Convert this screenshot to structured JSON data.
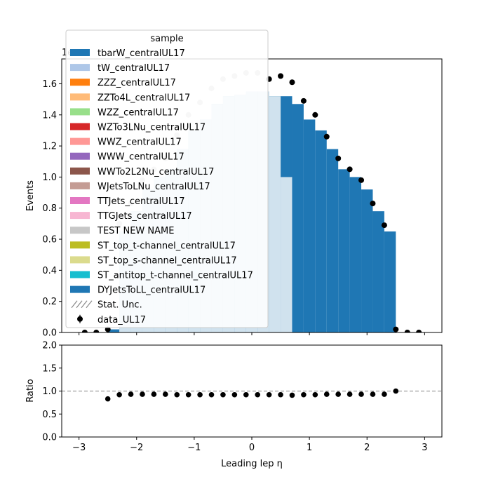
{
  "chart_data": [
    {
      "type": "bar",
      "panel": "main",
      "xlabel": "Leading lep η",
      "ylabel": "Events",
      "offset_text": "1e",
      "xlim": [
        -3.3,
        3.3
      ],
      "ylim": [
        0,
        1.76
      ],
      "yticks": [
        0.0,
        0.2,
        0.4,
        0.6,
        0.8,
        1.0,
        1.2,
        1.4,
        1.6
      ],
      "xticks": [
        -3,
        -2,
        -1,
        0,
        1,
        2,
        3
      ],
      "bin_edges": [
        -2.5,
        -2.3,
        -2.1,
        -1.9,
        -1.7,
        -1.5,
        -1.3,
        -1.1,
        -0.9,
        -0.7,
        -0.5,
        -0.3,
        -0.1,
        0.1,
        0.3,
        0.5,
        0.7,
        0.9,
        1.1,
        1.3,
        1.5,
        1.7,
        1.9,
        2.1,
        2.3,
        2.5
      ],
      "mc_total": [
        0.02,
        0.65,
        0.78,
        0.92,
        1.0,
        1.05,
        1.18,
        1.3,
        1.37,
        1.47,
        1.52,
        1.53,
        1.55,
        1.55,
        1.52,
        1.52,
        1.47,
        1.37,
        1.3,
        1.18,
        1.05,
        1.0,
        0.92,
        0.78,
        0.65,
        0.02
      ],
      "test_new_name": [
        0.0,
        0.69,
        0.84,
        0.99,
        1.06,
        1.12,
        1.3,
        1.43,
        1.5,
        1.6,
        1.65,
        1.66,
        1.67,
        1.68,
        1.68,
        1.0,
        0.0,
        0.0,
        0.0,
        0.0,
        0.0,
        0.0,
        0.0,
        0.0,
        0.0,
        0.0
      ],
      "data_x": [
        -2.9,
        -2.7,
        -2.5,
        -2.3,
        -2.1,
        -1.9,
        -1.7,
        -1.5,
        -1.3,
        -1.1,
        -0.9,
        -0.7,
        -0.5,
        -0.3,
        -0.1,
        0.1,
        0.3,
        0.5,
        0.7,
        0.9,
        1.1,
        1.3,
        1.5,
        1.7,
        1.9,
        2.1,
        2.3,
        2.5,
        2.7,
        2.9
      ],
      "data_y": [
        0.0,
        0.0,
        0.02,
        0.7,
        0.83,
        0.98,
        1.05,
        1.12,
        1.27,
        1.4,
        1.48,
        1.57,
        1.63,
        1.65,
        1.67,
        1.67,
        1.63,
        1.65,
        1.61,
        1.49,
        1.4,
        1.26,
        1.12,
        1.05,
        0.98,
        0.83,
        0.69,
        0.02,
        0.0,
        0.0
      ],
      "legend": {
        "title": "sample",
        "placement": "upper-left",
        "entries": [
          {
            "label": "tbarW_centralUL17",
            "color": "#1f77b4",
            "kind": "patch"
          },
          {
            "label": "tW_centralUL17",
            "color": "#aec7e8",
            "kind": "patch"
          },
          {
            "label": "ZZZ_centralUL17",
            "color": "#ff7f0e",
            "kind": "patch"
          },
          {
            "label": "ZZTo4L_centralUL17",
            "color": "#ffbb78",
            "kind": "patch"
          },
          {
            "label": "WZZ_centralUL17",
            "color": "#98df8a",
            "kind": "patch"
          },
          {
            "label": "WZTo3LNu_centralUL17",
            "color": "#d62728",
            "kind": "patch"
          },
          {
            "label": "WWZ_centralUL17",
            "color": "#ff9896",
            "kind": "patch"
          },
          {
            "label": "WWW_centralUL17",
            "color": "#9467bd",
            "kind": "patch"
          },
          {
            "label": "WWTo2L2Nu_centralUL17",
            "color": "#8c564b",
            "kind": "patch"
          },
          {
            "label": "WJetsToLNu_centralUL17",
            "color": "#c49c94",
            "kind": "patch"
          },
          {
            "label": "TTJets_centralUL17",
            "color": "#e377c2",
            "kind": "patch"
          },
          {
            "label": "TTGJets_centralUL17",
            "color": "#f7b6d2",
            "kind": "patch"
          },
          {
            "label": "TEST NEW NAME",
            "color": "#c7c7c7",
            "kind": "patch"
          },
          {
            "label": "ST_top_t-channel_centralUL17",
            "color": "#bcbd22",
            "kind": "patch"
          },
          {
            "label": "ST_top_s-channel_centralUL17",
            "color": "#dbdb8d",
            "kind": "patch"
          },
          {
            "label": "ST_antitop_t-channel_centralUL17",
            "color": "#17becf",
            "kind": "patch"
          },
          {
            "label": "DYJetsToLL_centralUL17",
            "color": "#1f77b4",
            "kind": "patch"
          },
          {
            "label": "Stat. Unc.",
            "color": "#888888",
            "kind": "hatch"
          },
          {
            "label": "data_UL17",
            "color": "#000000",
            "kind": "errorbar"
          }
        ]
      }
    },
    {
      "type": "scatter",
      "panel": "ratio",
      "xlabel": "Leading lep η",
      "ylabel": "Ratio",
      "xlim": [
        -3.3,
        3.3
      ],
      "ylim": [
        0.0,
        2.0
      ],
      "yticks": [
        0.0,
        0.5,
        1.0,
        1.5,
        2.0
      ],
      "xticks": [
        -3,
        -2,
        -1,
        0,
        1,
        2,
        3
      ],
      "reference_line": 1.0,
      "x": [
        -2.5,
        -2.3,
        -2.1,
        -1.9,
        -1.7,
        -1.5,
        -1.3,
        -1.1,
        -0.9,
        -0.7,
        -0.5,
        -0.3,
        -0.1,
        0.1,
        0.3,
        0.5,
        0.7,
        0.9,
        1.1,
        1.3,
        1.5,
        1.7,
        1.9,
        2.1,
        2.3,
        2.5
      ],
      "y": [
        0.83,
        0.92,
        0.93,
        0.93,
        0.93,
        0.93,
        0.92,
        0.92,
        0.92,
        0.92,
        0.92,
        0.92,
        0.92,
        0.92,
        0.92,
        0.92,
        0.91,
        0.92,
        0.92,
        0.93,
        0.93,
        0.93,
        0.93,
        0.93,
        0.93,
        1.0
      ]
    }
  ]
}
